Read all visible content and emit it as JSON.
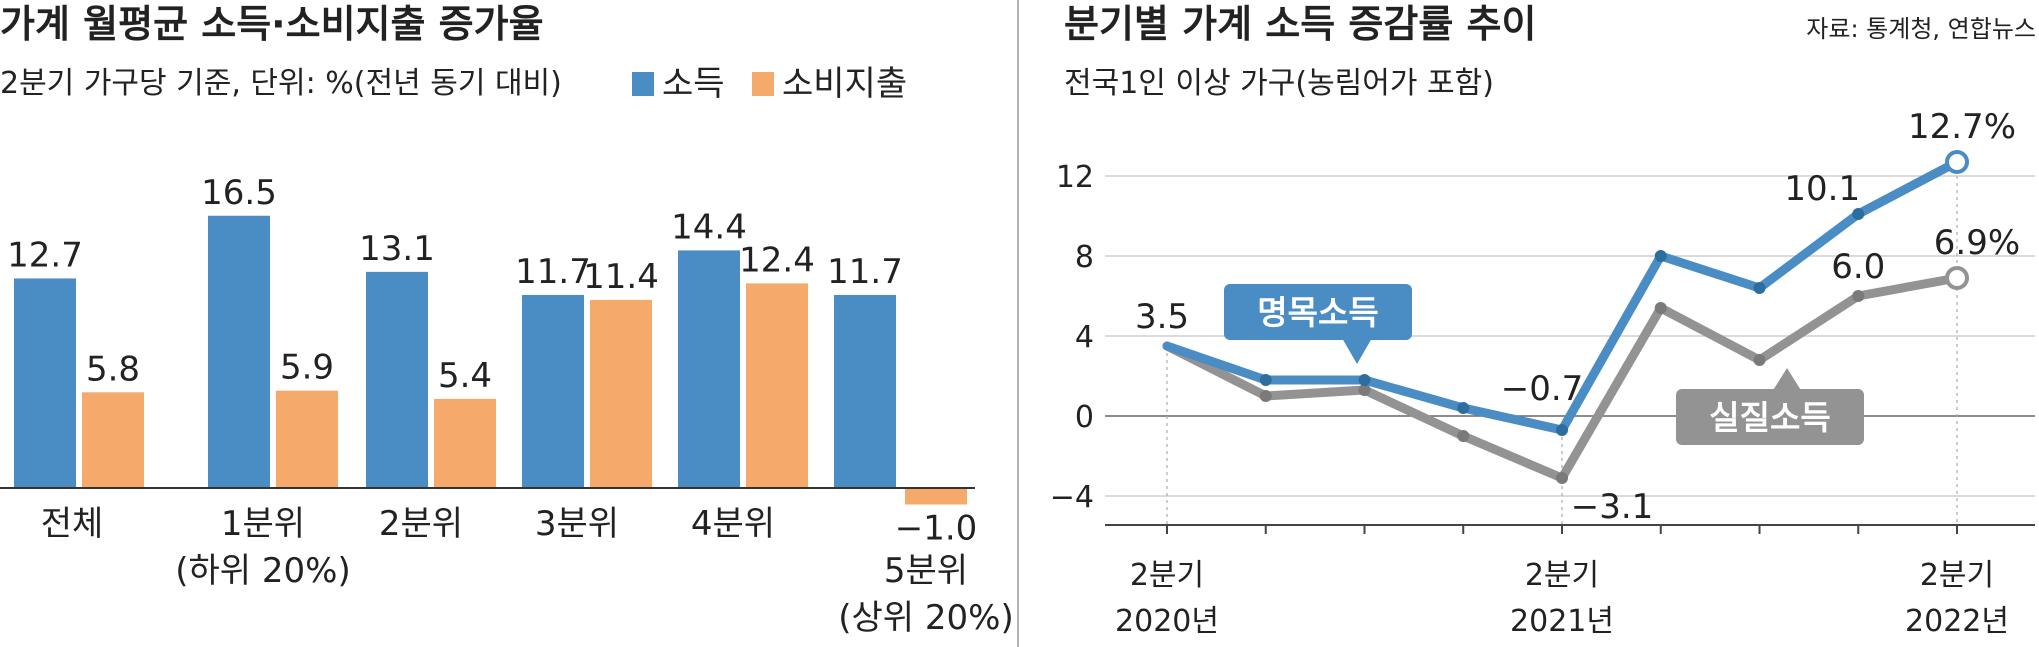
{
  "chart_data": [
    {
      "type": "bar",
      "title": "가계 월평균 소득·소비지출 증가율",
      "subtitle": "2분기 가구당 기준, 단위: %(전년 동기 대비)",
      "categories": [
        [
          "전체"
        ],
        [
          "1분위",
          "(하위 20%)"
        ],
        [
          "2분위"
        ],
        [
          "3분위"
        ],
        [
          "4분위"
        ],
        [
          "5분위",
          "(상위 20%)"
        ]
      ],
      "series": [
        {
          "name": "소득",
          "color": "#4a8cc4",
          "values": [
            12.7,
            16.5,
            13.1,
            11.7,
            14.4,
            11.7
          ],
          "labels": [
            "12.7",
            "16.5",
            "13.1",
            "11.7",
            "14.4",
            "11.7"
          ]
        },
        {
          "name": "소비지출",
          "color": "#f5a96b",
          "values": [
            5.8,
            5.9,
            5.4,
            11.4,
            12.4,
            -1.0
          ],
          "labels": [
            "5.8",
            "5.9",
            "5.4",
            "11.4",
            "12.4",
            "−1.0"
          ]
        }
      ],
      "ylim": [
        -1.5,
        19
      ]
    },
    {
      "type": "line",
      "title": "분기별 가계 소득 증감률 추이",
      "subtitle": "전국1인 이상 가구(농림어가 포함)",
      "source": "자료: 통계청, 연합뉴스",
      "x_count": 9,
      "x_tick_labels": [
        {
          "index": 0,
          "lines": [
            "2분기",
            "2020년"
          ]
        },
        {
          "index": 4,
          "lines": [
            "2분기",
            "2021년"
          ]
        },
        {
          "index": 8,
          "lines": [
            "2분기",
            "2022년"
          ]
        }
      ],
      "ylim": [
        -6,
        14
      ],
      "yticks": [
        12,
        8,
        4,
        0,
        -4
      ],
      "ytick_labels": [
        "12",
        "8",
        "4",
        "0",
        "−4"
      ],
      "series": [
        {
          "name": "명목소득",
          "color": "#4a8cc4",
          "values": [
            3.5,
            1.8,
            1.8,
            0.4,
            -0.7,
            8.0,
            6.4,
            10.1,
            12.7
          ],
          "point_labels": [
            {
              "index": 0,
              "text": "3.5"
            },
            {
              "index": 4,
              "text": "−0.7"
            },
            {
              "index": 7,
              "text": "10.1"
            },
            {
              "index": 8,
              "text": "12.7%"
            }
          ]
        },
        {
          "name": "실질소득",
          "color": "#939393",
          "values": [
            3.5,
            1.0,
            1.3,
            -1.0,
            -3.1,
            5.4,
            2.8,
            6.0,
            6.9
          ],
          "point_labels": [
            {
              "index": 4,
              "text": "−3.1"
            },
            {
              "index": 7,
              "text": "6.0"
            },
            {
              "index": 8,
              "text": "6.9%"
            }
          ]
        }
      ]
    }
  ]
}
